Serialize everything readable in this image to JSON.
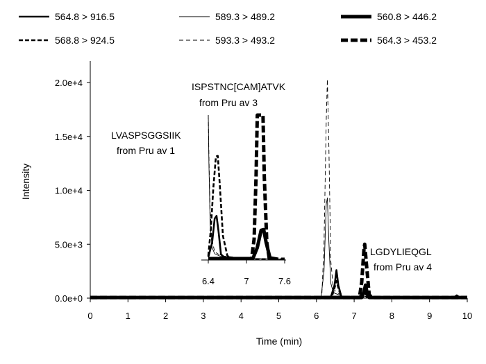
{
  "chart_data": [
    {
      "type": "line",
      "title": "",
      "xlabel": "Time (min)",
      "ylabel": "Intensity",
      "xlim": [
        0,
        10
      ],
      "ylim": [
        0,
        21000
      ],
      "x_ticks": [
        0,
        1,
        2,
        3,
        4,
        5,
        6,
        7,
        8,
        9,
        10
      ],
      "y_ticks": [
        0,
        5000,
        10000,
        15000,
        20000
      ],
      "x_tick_labels": [
        "0",
        "1",
        "2",
        "3",
        "4",
        "5",
        "6",
        "7",
        "8",
        "9",
        "10"
      ],
      "y_tick_labels": [
        "0.0e+0",
        "5.0e+3",
        "1.0e+4",
        "1.5e+4",
        "2.0e+4"
      ],
      "grid": false,
      "legend_position": "top",
      "series": [
        {
          "name": "564.8 > 916.5",
          "style": "solid-medium",
          "points": [
            [
              0,
              80
            ],
            [
              6.38,
              80
            ],
            [
              6.48,
              1200
            ],
            [
              6.53,
              2600
            ],
            [
              6.58,
              1200
            ],
            [
              6.66,
              150
            ],
            [
              7.1,
              80
            ],
            [
              7.2,
              300
            ],
            [
              7.26,
              650
            ],
            [
              7.32,
              300
            ],
            [
              7.42,
              80
            ],
            [
              9.65,
              80
            ],
            [
              9.72,
              260
            ],
            [
              9.8,
              80
            ],
            [
              10,
              80
            ]
          ]
        },
        {
          "name": "589.3 > 489.2",
          "style": "solid-thin",
          "points": [
            [
              0,
              40
            ],
            [
              5.6,
              40
            ],
            [
              5.7,
              200
            ],
            [
              5.8,
              40
            ],
            [
              6.12,
              40
            ],
            [
              6.2,
              2500
            ],
            [
              6.26,
              8700
            ],
            [
              6.29,
              9300
            ],
            [
              6.33,
              5200
            ],
            [
              6.38,
              1400
            ],
            [
              6.45,
              500
            ],
            [
              6.6,
              300
            ],
            [
              6.72,
              150
            ],
            [
              10,
              40
            ]
          ]
        },
        {
          "name": "560.8 > 446.2",
          "style": "solid-thick",
          "points": [
            [
              0,
              60
            ],
            [
              6.7,
              60
            ],
            [
              7.2,
              60
            ],
            [
              7.26,
              550
            ],
            [
              7.3,
              1200
            ],
            [
              7.34,
              550
            ],
            [
              7.4,
              60
            ],
            [
              10,
              60
            ]
          ]
        },
        {
          "name": "568.8 > 924.5",
          "style": "dashed-medium",
          "points": [
            [
              0,
              60
            ],
            [
              6.4,
              60
            ],
            [
              6.46,
              700
            ],
            [
              6.53,
              1600
            ],
            [
              6.6,
              700
            ],
            [
              6.68,
              80
            ],
            [
              10,
              60
            ]
          ]
        },
        {
          "name": "593.3 > 493.2",
          "style": "dashed-thin",
          "points": [
            [
              0,
              50
            ],
            [
              6.14,
              50
            ],
            [
              6.2,
              5000
            ],
            [
              6.26,
              16500
            ],
            [
              6.29,
              20300
            ],
            [
              6.33,
              14000
            ],
            [
              6.38,
              3500
            ],
            [
              6.45,
              800
            ],
            [
              6.6,
              400
            ],
            [
              6.72,
              200
            ],
            [
              10,
              50
            ]
          ]
        },
        {
          "name": "564.3 > 453.2",
          "style": "dashed-thick",
          "points": [
            [
              0,
              60
            ],
            [
              7.14,
              60
            ],
            [
              7.2,
              1500
            ],
            [
              7.26,
              4500
            ],
            [
              7.28,
              5000
            ],
            [
              7.33,
              3000
            ],
            [
              7.4,
              300
            ],
            [
              7.48,
              60
            ],
            [
              10,
              60
            ]
          ]
        }
      ],
      "annotations": [
        {
          "text": "ISPSTNC[CAM]ATVK",
          "line2": "from Pru av 3"
        },
        {
          "text": "LVASPSGGSIIK",
          "line2": "from Pru av 1"
        },
        {
          "text": "LGDYLIEQGL",
          "line2": "from Pru av 4"
        }
      ]
    },
    {
      "type": "line",
      "title": "",
      "role": "inset",
      "xlim": [
        6.4,
        7.6
      ],
      "ylim": [
        0,
        2000
      ],
      "x_ticks": [
        6.4,
        7,
        7.6
      ],
      "x_tick_labels": [
        "6.4",
        "7",
        "7.6"
      ],
      "series": [
        {
          "name": "564.8 > 916.5",
          "style": "solid-medium",
          "points": [
            [
              6.4,
              40
            ],
            [
              6.46,
              250
            ],
            [
              6.5,
              600
            ],
            [
              6.53,
              640
            ],
            [
              6.56,
              420
            ],
            [
              6.6,
              80
            ],
            [
              6.68,
              20
            ],
            [
              7.1,
              20
            ],
            [
              7.16,
              180
            ],
            [
              7.22,
              420
            ],
            [
              7.26,
              450
            ],
            [
              7.3,
              280
            ],
            [
              7.36,
              40
            ],
            [
              7.5,
              10
            ]
          ]
        },
        {
          "name": "589.3 > 489.2",
          "style": "solid-thin",
          "points": [
            [
              6.4,
              2100
            ],
            [
              6.41,
              1400
            ],
            [
              6.43,
              520
            ],
            [
              6.46,
              180
            ],
            [
              6.5,
              90
            ],
            [
              6.6,
              50
            ],
            [
              7.0,
              20
            ],
            [
              7.6,
              10
            ]
          ]
        },
        {
          "name": "560.8 > 446.2",
          "style": "solid-thick",
          "points": [
            [
              6.4,
              20
            ],
            [
              7.1,
              20
            ],
            [
              7.17,
              180
            ],
            [
              7.23,
              430
            ],
            [
              7.27,
              440
            ],
            [
              7.31,
              250
            ],
            [
              7.37,
              30
            ],
            [
              7.5,
              10
            ]
          ]
        },
        {
          "name": "568.8 > 924.5",
          "style": "dashed-medium",
          "points": [
            [
              6.4,
              60
            ],
            [
              6.44,
              450
            ],
            [
              6.48,
              1050
            ],
            [
              6.52,
              1500
            ],
            [
              6.55,
              1510
            ],
            [
              6.58,
              1100
            ],
            [
              6.63,
              350
            ],
            [
              6.7,
              60
            ],
            [
              6.78,
              15
            ],
            [
              7.6,
              10
            ]
          ]
        },
        {
          "name": "593.3 > 493.2",
          "style": "dashed-thin",
          "points": [
            [
              6.4,
              2100
            ],
            [
              6.41,
              1500
            ],
            [
              6.43,
              700
            ],
            [
              6.46,
              280
            ],
            [
              6.5,
              120
            ],
            [
              6.6,
              60
            ],
            [
              7.0,
              25
            ],
            [
              7.6,
              10
            ]
          ]
        },
        {
          "name": "564.3 > 453.2",
          "style": "dashed-thick",
          "points": [
            [
              6.4,
              10
            ],
            [
              7.08,
              10
            ],
            [
              7.12,
              300
            ],
            [
              7.15,
              1200
            ],
            [
              7.17,
              2100
            ],
            [
              7.24,
              2100
            ],
            [
              7.26,
              2100
            ],
            [
              7.28,
              1200
            ],
            [
              7.32,
              250
            ],
            [
              7.36,
              10
            ],
            [
              7.6,
              10
            ]
          ]
        }
      ]
    }
  ]
}
